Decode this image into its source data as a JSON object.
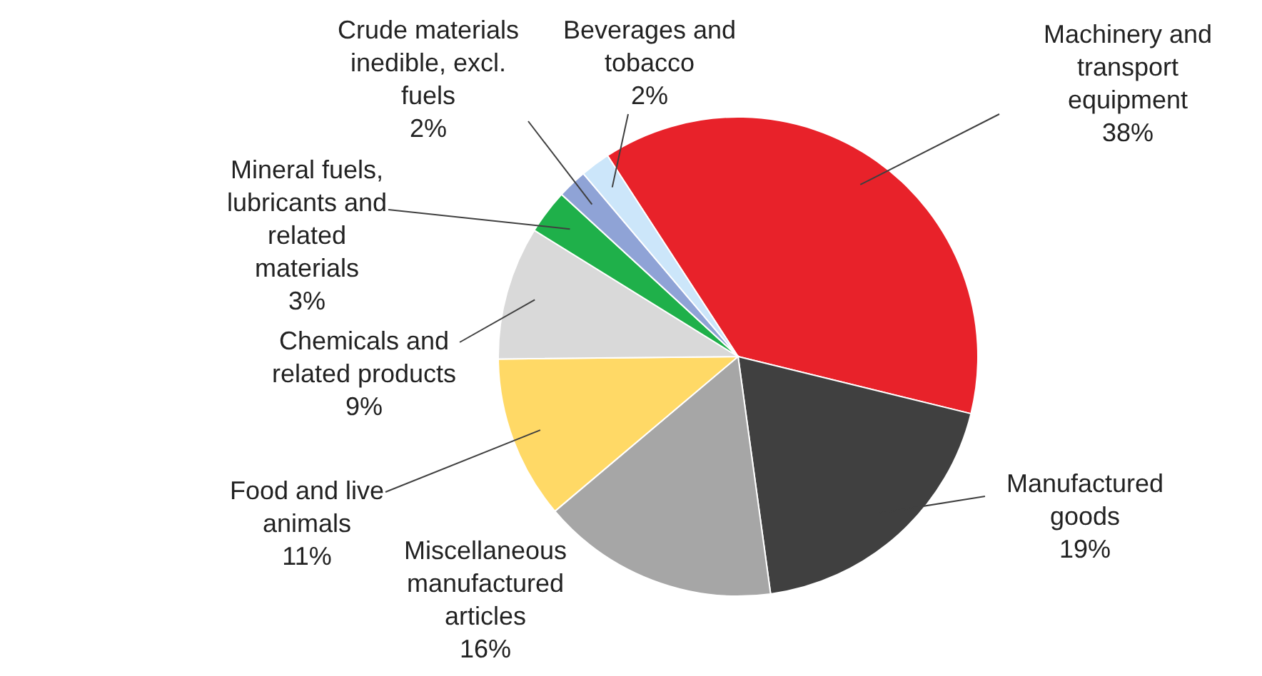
{
  "chart_data": {
    "type": "pie",
    "categories": [
      "Machinery and transport equipment",
      "Manufactured goods",
      "Miscellaneous manufactured articles",
      "Food and live animals",
      "Chemicals and related products",
      "Mineral fuels, lubricants and related materials",
      "Crude materials inedible, excl. fuels",
      "Beverages and tobacco"
    ],
    "values": [
      38,
      19,
      16,
      11,
      9,
      3,
      2,
      2
    ],
    "value_labels": [
      "38%",
      "19%",
      "16%",
      "11%",
      "9%",
      "3%",
      "2%",
      "2%"
    ],
    "colors": [
      "#e8222a",
      "#404040",
      "#a6a6a6",
      "#ffd966",
      "#d9d9d9",
      "#1fb04a",
      "#8fa3d6",
      "#cce6fa"
    ]
  }
}
